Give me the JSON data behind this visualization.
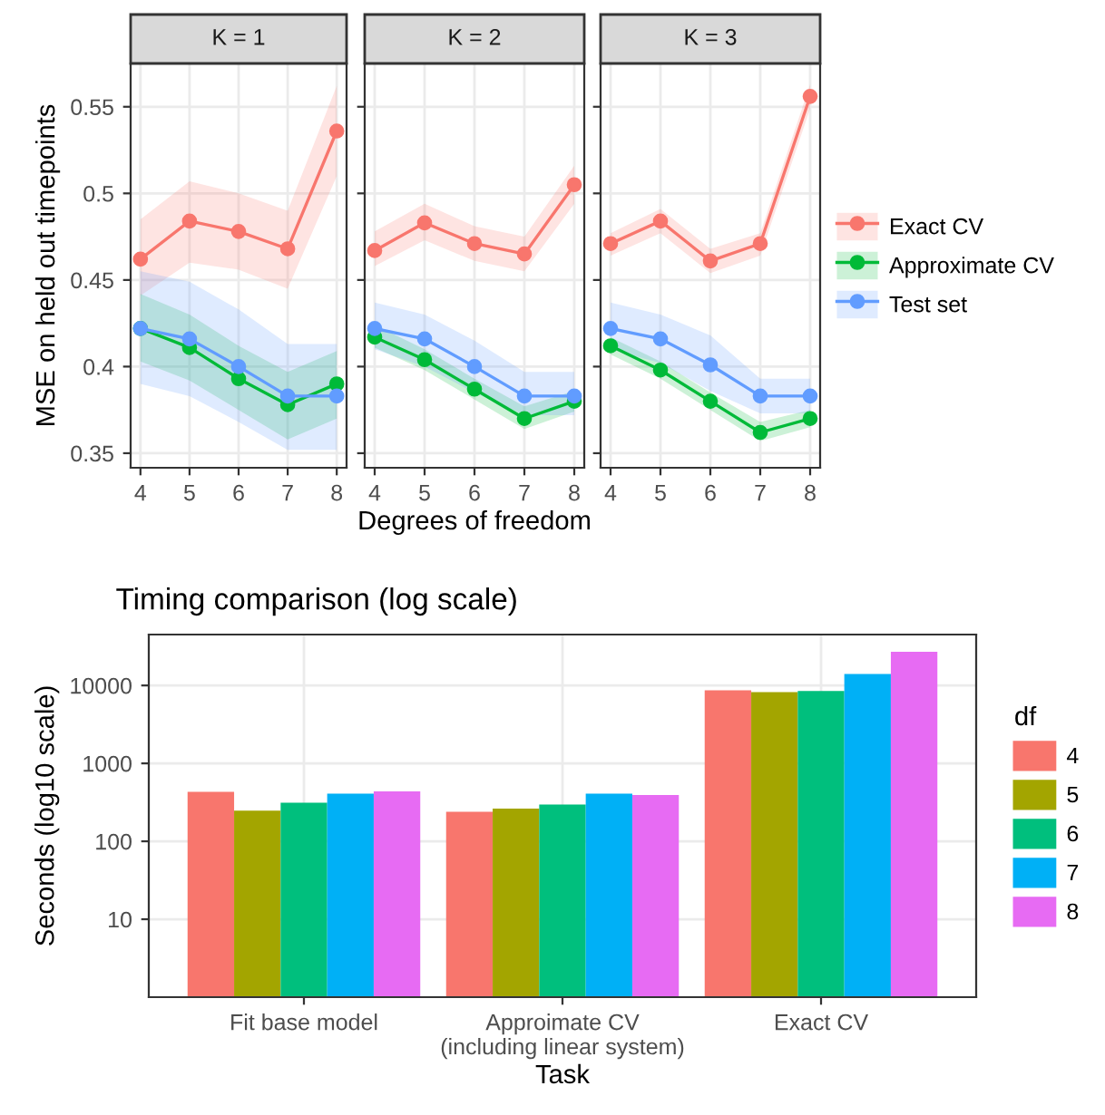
{
  "chart_data": [
    {
      "type": "line",
      "title": "K = 1",
      "ylabel": "MSE on held out timepoints",
      "x": [
        4,
        5,
        6,
        7,
        8
      ],
      "xlim": [
        3.8,
        8.2
      ],
      "ylim": [
        0.3416,
        0.575
      ],
      "xticks": [
        4,
        5,
        6,
        7,
        8
      ],
      "yticks": [
        0.35,
        0.4,
        0.45,
        0.5,
        0.55
      ],
      "grid": true,
      "marker": "circle",
      "line_style": "solid",
      "series": [
        {
          "color": "#f8766d",
          "values": [
            0.462,
            0.484,
            0.478,
            0.468,
            0.536
          ],
          "lower": [
            0.441,
            0.46,
            0.456,
            0.445,
            0.51
          ],
          "upper": [
            0.485,
            0.507,
            0.5,
            0.49,
            0.562
          ]
        },
        {
          "color": "#00ba38",
          "values": [
            0.422,
            0.411,
            0.393,
            0.378,
            0.39
          ],
          "lower": [
            0.403,
            0.392,
            0.375,
            0.358,
            0.37
          ],
          "upper": [
            0.442,
            0.43,
            0.412,
            0.397,
            0.409
          ]
        },
        {
          "color": "#619cff",
          "values": [
            0.422,
            0.416,
            0.4,
            0.383,
            0.383
          ],
          "lower": [
            0.39,
            0.383,
            0.368,
            0.352,
            0.352
          ],
          "upper": [
            0.455,
            0.449,
            0.433,
            0.413,
            0.413
          ]
        }
      ]
    },
    {
      "type": "line",
      "title": "K = 2",
      "xlabel": "Degrees of freedom",
      "x": [
        4,
        5,
        6,
        7,
        8
      ],
      "xlim": [
        3.8,
        8.2
      ],
      "ylim": [
        0.3416,
        0.575
      ],
      "xticks": [
        4,
        5,
        6,
        7,
        8
      ],
      "yticks": [
        0.35,
        0.4,
        0.45,
        0.5,
        0.55
      ],
      "tick_labels": "x",
      "grid": true,
      "marker": "circle",
      "line_style": "solid",
      "series": [
        {
          "color": "#f8766d",
          "values": [
            0.467,
            0.483,
            0.471,
            0.465,
            0.505
          ],
          "lower": [
            0.458,
            0.473,
            0.461,
            0.455,
            0.494
          ],
          "upper": [
            0.478,
            0.494,
            0.481,
            0.475,
            0.516
          ]
        },
        {
          "color": "#00ba38",
          "values": [
            0.417,
            0.404,
            0.387,
            0.37,
            0.38
          ],
          "lower": [
            0.411,
            0.398,
            0.381,
            0.364,
            0.374
          ],
          "upper": [
            0.424,
            0.41,
            0.393,
            0.377,
            0.386
          ]
        },
        {
          "color": "#619cff",
          "values": [
            0.422,
            0.416,
            0.4,
            0.383,
            0.383
          ],
          "lower": [
            0.41,
            0.4,
            0.385,
            0.372,
            0.372
          ],
          "upper": [
            0.437,
            0.43,
            0.415,
            0.397,
            0.397
          ]
        }
      ]
    },
    {
      "type": "line",
      "title": "K = 3",
      "x": [
        4,
        5,
        6,
        7,
        8
      ],
      "xlim": [
        3.8,
        8.2
      ],
      "ylim": [
        0.3416,
        0.575
      ],
      "xticks": [
        4,
        5,
        6,
        7,
        8
      ],
      "yticks": [
        0.35,
        0.4,
        0.45,
        0.5,
        0.55
      ],
      "tick_labels": "x",
      "grid": true,
      "marker": "circle",
      "line_style": "solid",
      "legend": "right",
      "series": [
        {
          "name": "Exact CV",
          "color": "#f8766d",
          "values": [
            0.471,
            0.484,
            0.461,
            0.471,
            0.556
          ],
          "lower": [
            0.464,
            0.477,
            0.454,
            0.464,
            0.549
          ],
          "upper": [
            0.477,
            0.491,
            0.468,
            0.477,
            0.563
          ]
        },
        {
          "name": "Approximate CV",
          "color": "#00ba38",
          "values": [
            0.412,
            0.398,
            0.38,
            0.362,
            0.37
          ],
          "lower": [
            0.407,
            0.393,
            0.375,
            0.357,
            0.365
          ],
          "upper": [
            0.417,
            0.403,
            0.385,
            0.368,
            0.375
          ]
        },
        {
          "name": "Test set",
          "color": "#619cff",
          "values": [
            0.422,
            0.416,
            0.401,
            0.383,
            0.383
          ],
          "lower": [
            0.41,
            0.402,
            0.386,
            0.373,
            0.373
          ],
          "upper": [
            0.437,
            0.43,
            0.418,
            0.393,
            0.393
          ]
        }
      ]
    },
    {
      "type": "bar",
      "title": "Timing comparison (log scale)",
      "xlabel": "Task",
      "ylabel": "Seconds (log10 scale)",
      "legend_title": "df",
      "legend": "right",
      "log": true,
      "grid": true,
      "categories": [
        "Fit base model",
        "Approimate CV\n(including linear system)",
        "Exact CV"
      ],
      "ylim": [
        1,
        45000
      ],
      "yticks": [
        10,
        100,
        1000,
        10000
      ],
      "series": [
        {
          "name": "4",
          "color": "#f8766d",
          "values": [
            430,
            239,
            8670
          ]
        },
        {
          "name": "5",
          "color": "#a3a500",
          "values": [
            248,
            262,
            8220
          ]
        },
        {
          "name": "6",
          "color": "#00bf7d",
          "values": [
            312,
            296,
            8520
          ]
        },
        {
          "name": "7",
          "color": "#00b0f6",
          "values": [
            408,
            408,
            14000
          ]
        },
        {
          "name": "8",
          "color": "#e76bf3",
          "values": [
            438,
            394,
            27100
          ]
        }
      ]
    }
  ]
}
